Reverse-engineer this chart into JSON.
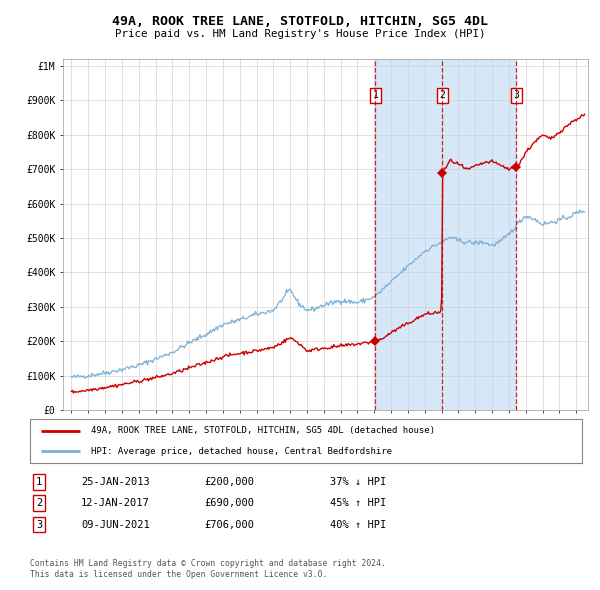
{
  "title": "49A, ROOK TREE LANE, STOTFOLD, HITCHIN, SG5 4DL",
  "subtitle": "Price paid vs. HM Land Registry's House Price Index (HPI)",
  "legend_line1": "49A, ROOK TREE LANE, STOTFOLD, HITCHIN, SG5 4DL (detached house)",
  "legend_line2": "HPI: Average price, detached house, Central Bedfordshire",
  "footer1": "Contains HM Land Registry data © Crown copyright and database right 2024.",
  "footer2": "This data is licensed under the Open Government Licence v3.0.",
  "transactions": [
    {
      "num": 1,
      "date": "25-JAN-2013",
      "price": 200000,
      "hpi_rel": "37% ↓ HPI",
      "year": 2013.07
    },
    {
      "num": 2,
      "date": "12-JAN-2017",
      "price": 690000,
      "hpi_rel": "45% ↑ HPI",
      "year": 2017.04
    },
    {
      "num": 3,
      "date": "09-JUN-2021",
      "price": 706000,
      "hpi_rel": "40% ↑ HPI",
      "year": 2021.44
    }
  ],
  "hpi_color": "#7bafd4",
  "price_color": "#cc0000",
  "shade_color": "#d6e8f7",
  "grid_color": "#cccccc",
  "ylim": [
    0,
    1000000
  ],
  "yticks": [
    0,
    100000,
    200000,
    300000,
    400000,
    500000,
    600000,
    700000,
    800000,
    900000,
    1000000
  ],
  "xlim_start": 1994.5,
  "xlim_end": 2025.7,
  "xtick_years": [
    1995,
    1996,
    1997,
    1998,
    1999,
    2000,
    2001,
    2002,
    2003,
    2004,
    2005,
    2006,
    2007,
    2008,
    2009,
    2010,
    2011,
    2012,
    2013,
    2014,
    2015,
    2016,
    2017,
    2018,
    2019,
    2020,
    2021,
    2022,
    2023,
    2024,
    2025
  ]
}
